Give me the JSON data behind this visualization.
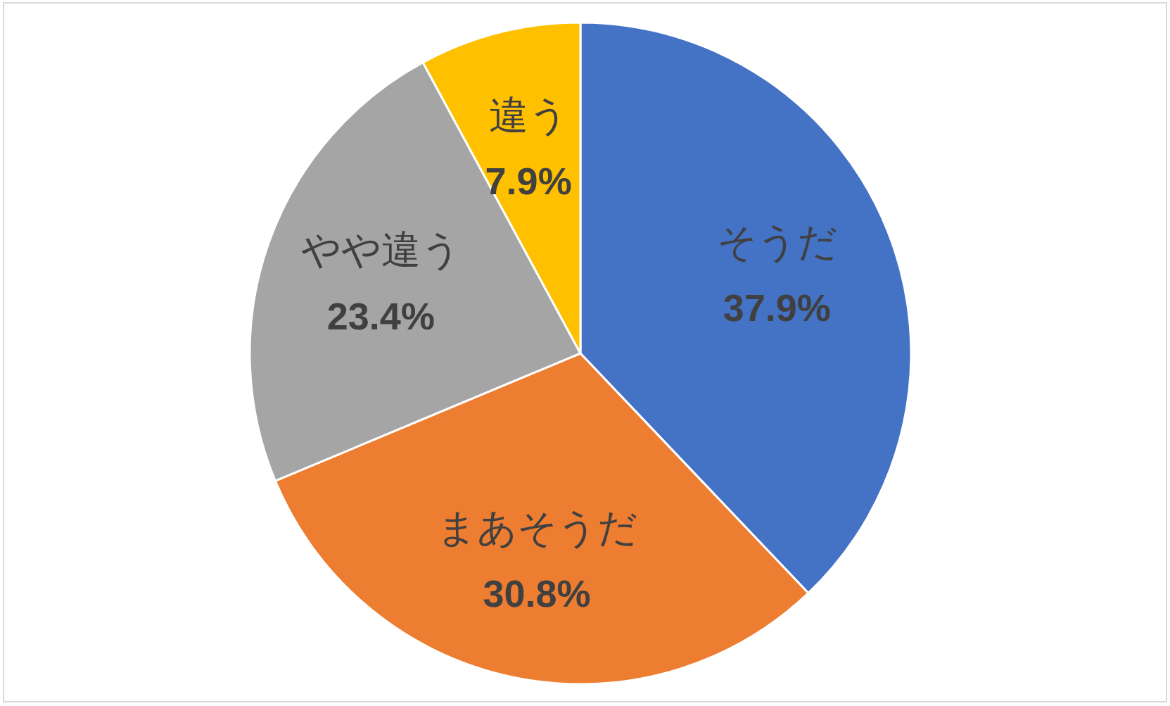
{
  "chart_data": {
    "type": "pie",
    "categories": [
      "そうだ",
      "まあそうだ",
      "やや違う",
      "違う"
    ],
    "values": [
      37.9,
      30.8,
      23.4,
      7.9
    ],
    "value_labels": [
      "37.9%",
      "30.8%",
      "23.4%",
      "7.9%"
    ],
    "colors": [
      "#4472c4",
      "#ed7d31",
      "#a5a5a5",
      "#ffc000"
    ]
  }
}
